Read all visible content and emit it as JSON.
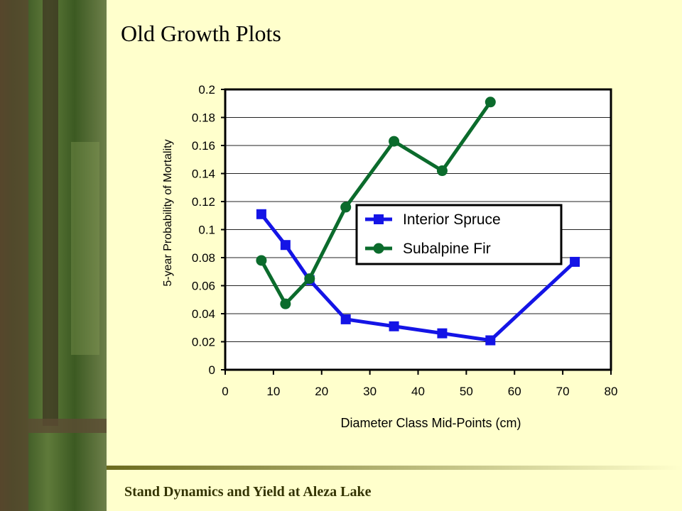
{
  "slide": {
    "title": "Old Growth Plots",
    "footer": "Stand Dynamics and Yield at Aleza Lake"
  },
  "chart_data": {
    "type": "line",
    "xlabel": "Diameter Class Mid-Points (cm)",
    "ylabel": "5-year Probability of Mortality",
    "x": [
      7.5,
      12.5,
      17.5,
      25,
      35,
      45,
      55,
      72.5
    ],
    "series": [
      {
        "name": "Interior Spruce",
        "color": "#1414e6",
        "marker": "square",
        "values": [
          0.111,
          0.089,
          0.064,
          0.036,
          0.031,
          0.026,
          0.021,
          0.077
        ]
      },
      {
        "name": "Subalpine Fir",
        "color": "#0b6b2c",
        "marker": "circle",
        "values": [
          0.078,
          0.047,
          0.065,
          0.116,
          0.163,
          0.142,
          0.191,
          null
        ]
      }
    ],
    "xlim": [
      0,
      80
    ],
    "xticks": [
      0,
      10,
      20,
      30,
      40,
      50,
      60,
      70,
      80
    ],
    "ylim": [
      0,
      0.2
    ],
    "yticks": [
      0,
      0.02,
      0.04,
      0.06,
      0.08,
      0.1,
      0.12,
      0.14,
      0.16,
      0.18,
      0.2
    ],
    "grid": true
  }
}
